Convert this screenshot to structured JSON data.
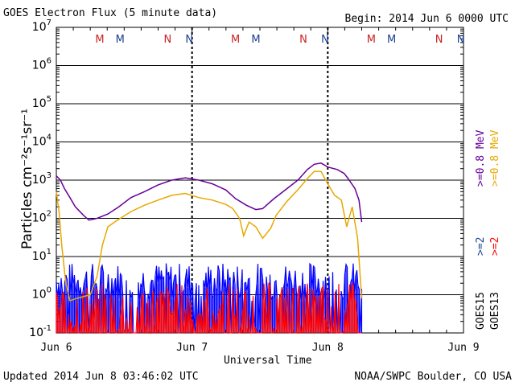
{
  "header": {
    "title": "GOES Electron Flux (5 minute data)",
    "begin": "Begin: 2014 Jun 6 0000 UTC"
  },
  "footer": {
    "updated": "Updated 2014 Jun  8 03:46:02 UTC",
    "credit": "NOAA/SWPC Boulder, CO USA"
  },
  "colors": {
    "purple": "#660099",
    "orange": "#e6a800",
    "blue": "#0000ff",
    "red": "#ff0000",
    "navy": "#1a3f8f",
    "darkred": "#cc2222"
  },
  "chart_data": {
    "type": "line",
    "title": "GOES Electron Flux (5 minute data)",
    "xlabel": "Universal Time",
    "ylabel": "Particles cm⁻²s⁻¹sr⁻¹",
    "x_unit": "days since 2014 Jun 6 0000 UTC",
    "xlim": [
      0,
      3
    ],
    "ylim": [
      0.1,
      10000000
    ],
    "yscale": "log",
    "x_ticks": [
      "Jun 6",
      "Jun 7",
      "Jun 8",
      "Jun 9"
    ],
    "y_tick_exponents": [
      -1,
      0,
      1,
      2,
      3,
      4,
      5,
      6,
      7
    ],
    "threshold": 1000,
    "right_labels": {
      "goes15": "GOES15",
      "goes13": "GOES13",
      "ge2_15": ">=2",
      "ge2_13": ">=2",
      "ge08_15": ">=0.8 MeV",
      "ge08_13": ">=0.8 MeV"
    },
    "mode_markers": [
      {
        "day": 0.32,
        "label": "M",
        "color": "#cc2222"
      },
      {
        "day": 0.47,
        "label": "M",
        "color": "#1a3f8f"
      },
      {
        "day": 0.82,
        "label": "N",
        "color": "#cc2222"
      },
      {
        "day": 0.98,
        "label": "N",
        "color": "#1a3f8f"
      },
      {
        "day": 1.32,
        "label": "M",
        "color": "#cc2222"
      },
      {
        "day": 1.47,
        "label": "M",
        "color": "#1a3f8f"
      },
      {
        "day": 1.82,
        "label": "N",
        "color": "#cc2222"
      },
      {
        "day": 1.98,
        "label": "N",
        "color": "#1a3f8f"
      },
      {
        "day": 2.32,
        "label": "M",
        "color": "#cc2222"
      },
      {
        "day": 2.47,
        "label": "M",
        "color": "#1a3f8f"
      },
      {
        "day": 2.82,
        "label": "N",
        "color": "#cc2222"
      },
      {
        "day": 2.98,
        "label": "N",
        "color": "#1a3f8f"
      }
    ],
    "dashed_days": [
      1.0,
      2.0
    ],
    "series": [
      {
        "name": "GOES15 >=0.8 MeV",
        "color": "#660099",
        "points": [
          [
            0.0,
            1300
          ],
          [
            0.03,
            1000
          ],
          [
            0.06,
            600
          ],
          [
            0.1,
            350
          ],
          [
            0.14,
            200
          ],
          [
            0.2,
            120
          ],
          [
            0.24,
            90
          ],
          [
            0.3,
            100
          ],
          [
            0.38,
            130
          ],
          [
            0.46,
            200
          ],
          [
            0.55,
            350
          ],
          [
            0.65,
            500
          ],
          [
            0.75,
            750
          ],
          [
            0.85,
            1000
          ],
          [
            0.95,
            1150
          ],
          [
            1.05,
            1000
          ],
          [
            1.15,
            800
          ],
          [
            1.25,
            550
          ],
          [
            1.32,
            330
          ],
          [
            1.4,
            220
          ],
          [
            1.47,
            170
          ],
          [
            1.52,
            180
          ],
          [
            1.6,
            320
          ],
          [
            1.7,
            600
          ],
          [
            1.78,
            1000
          ],
          [
            1.85,
            1900
          ],
          [
            1.9,
            2600
          ],
          [
            1.95,
            2800
          ],
          [
            2.0,
            2200
          ],
          [
            2.07,
            1900
          ],
          [
            2.12,
            1500
          ],
          [
            2.15,
            1100
          ],
          [
            2.2,
            600
          ],
          [
            2.23,
            300
          ],
          [
            2.25,
            80
          ]
        ]
      },
      {
        "name": "GOES13 >=0.8 MeV",
        "color": "#e6a800",
        "points": [
          [
            0.0,
            500
          ],
          [
            0.02,
            150
          ],
          [
            0.04,
            20
          ],
          [
            0.07,
            2
          ],
          [
            0.1,
            0.7
          ],
          [
            0.15,
            0.8
          ],
          [
            0.25,
            1
          ],
          [
            0.3,
            3
          ],
          [
            0.34,
            20
          ],
          [
            0.38,
            60
          ],
          [
            0.45,
            90
          ],
          [
            0.55,
            150
          ],
          [
            0.65,
            220
          ],
          [
            0.75,
            300
          ],
          [
            0.85,
            400
          ],
          [
            0.95,
            450
          ],
          [
            1.05,
            350
          ],
          [
            1.15,
            300
          ],
          [
            1.25,
            230
          ],
          [
            1.3,
            180
          ],
          [
            1.35,
            100
          ],
          [
            1.38,
            35
          ],
          [
            1.42,
            80
          ],
          [
            1.47,
            60
          ],
          [
            1.52,
            30
          ],
          [
            1.58,
            55
          ],
          [
            1.62,
            120
          ],
          [
            1.7,
            280
          ],
          [
            1.78,
            560
          ],
          [
            1.85,
            1100
          ],
          [
            1.9,
            1700
          ],
          [
            1.95,
            1700
          ],
          [
            2.0,
            800
          ],
          [
            2.05,
            400
          ],
          [
            2.1,
            300
          ],
          [
            2.14,
            60
          ],
          [
            2.18,
            200
          ],
          [
            2.22,
            30
          ],
          [
            2.25,
            0.8
          ]
        ]
      },
      {
        "name": "GOES15 >=2 MeV",
        "color": "#0000ff",
        "x_range": [
          0.0,
          2.25
        ],
        "baseline": 2.2,
        "spread": 3.2
      },
      {
        "name": "GOES13 >=2 MeV",
        "color": "#ff0000",
        "x_range": [
          0.0,
          2.25
        ],
        "baseline": 0.35,
        "spread": 6
      }
    ]
  }
}
